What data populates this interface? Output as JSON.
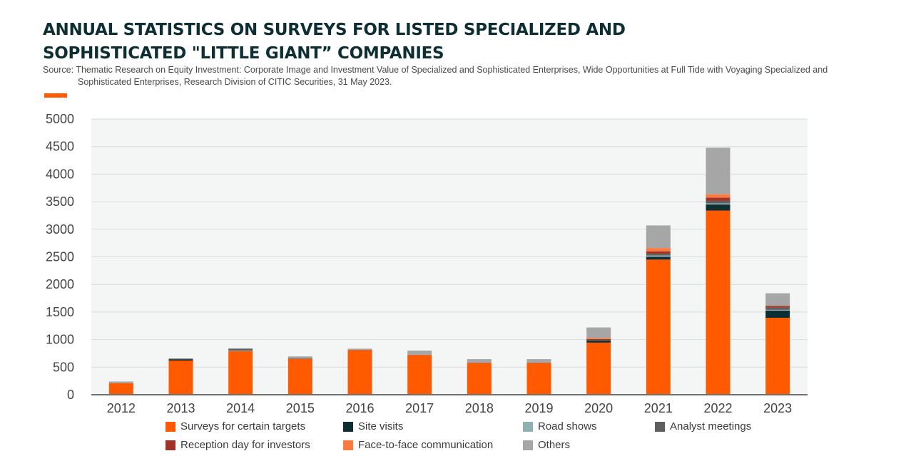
{
  "header": {
    "title_line1": "ANNUAL STATISTICS ON SURVEYS FOR LISTED SPECIALIZED AND",
    "title_line2": "SOPHISTICATED \"LITTLE GIANT” COMPANIES",
    "source": "Source: Thematic Research on Equity Investment: Corporate Image and Investment Value of Specialized and Sophisticated Enterprises, Wide Opportunities at Full Tide with Voyaging Specialized and Sophisticated Enterprises, Research Division of CITIC Securities, 31 May 2023.",
    "accent_color": "#ff5a00"
  },
  "chart_data": {
    "type": "bar",
    "stacked": true,
    "title": "",
    "xlabel": "",
    "ylabel": "",
    "ylim": [
      0,
      5000
    ],
    "yticks": [
      0,
      500,
      1000,
      1500,
      2000,
      2500,
      3000,
      3500,
      4000,
      4500,
      5000
    ],
    "grid": true,
    "legend_position": "bottom",
    "categories": [
      "2012",
      "2013",
      "2014",
      "2015",
      "2016",
      "2017",
      "2018",
      "2019",
      "2020",
      "2021",
      "2022",
      "2023"
    ],
    "series": [
      {
        "name": "Surveys for certain targets",
        "color": "#ff5a00",
        "values": [
          210,
          620,
          790,
          650,
          810,
          720,
          575,
          575,
          945,
          2450,
          3340,
          1395
        ]
      },
      {
        "name": "Site visits",
        "color": "#0d2e33",
        "values": [
          0,
          20,
          0,
          0,
          0,
          0,
          0,
          0,
          35,
          50,
          110,
          130
        ]
      },
      {
        "name": "Road shows",
        "color": "#8fb1b4",
        "values": [
          0,
          0,
          10,
          0,
          0,
          0,
          0,
          0,
          0,
          25,
          20,
          15
        ]
      },
      {
        "name": "Analyst meetings",
        "color": "#5f5f5f",
        "values": [
          0,
          15,
          35,
          10,
          5,
          5,
          5,
          5,
          15,
          30,
          45,
          40
        ]
      },
      {
        "name": "Reception day for investors",
        "color": "#a03327",
        "values": [
          0,
          0,
          0,
          0,
          0,
          0,
          0,
          0,
          15,
          45,
          60,
          30
        ]
      },
      {
        "name": "Face-to-face communication",
        "color": "#ff7a3d",
        "values": [
          0,
          0,
          0,
          0,
          0,
          0,
          0,
          0,
          20,
          60,
          60,
          0
        ]
      },
      {
        "name": "Others",
        "color": "#a6a6a6",
        "values": [
          30,
          0,
          5,
          35,
          20,
          75,
          65,
          65,
          190,
          410,
          845,
          230
        ]
      }
    ]
  }
}
